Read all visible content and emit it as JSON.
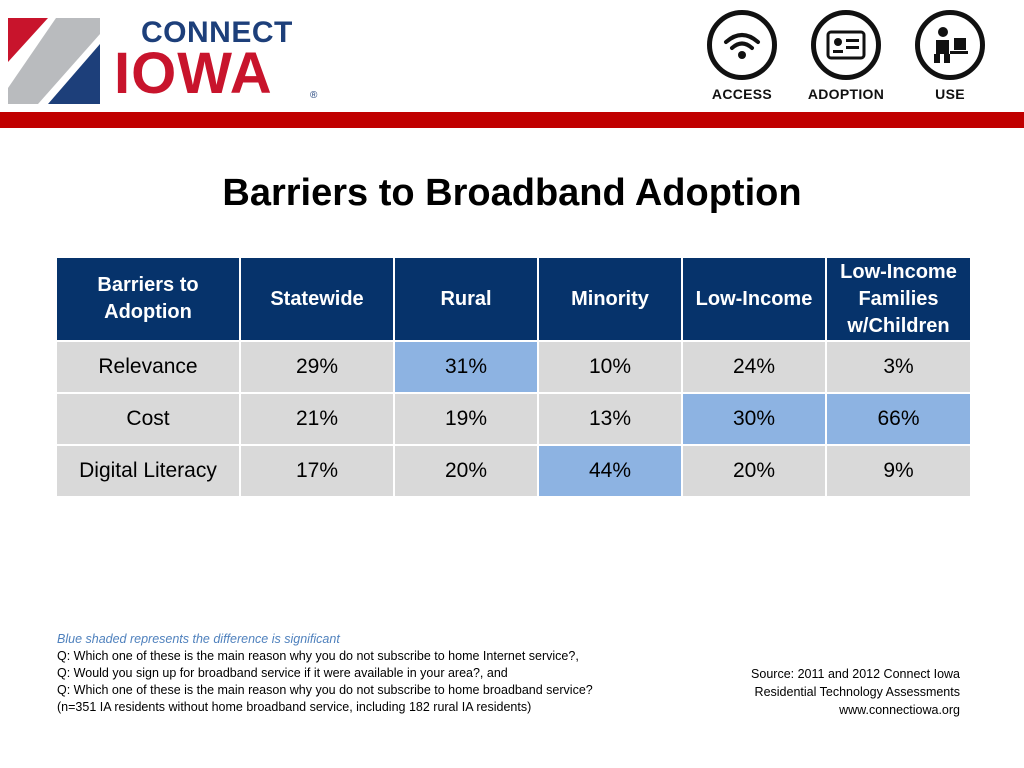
{
  "logo": {
    "line1": "CONNECT",
    "line2": "IOWA",
    "reg": "®"
  },
  "header_icons": [
    {
      "label": "ACCESS",
      "icon": "wifi-icon"
    },
    {
      "label": "ADOPTION",
      "icon": "certificate-icon"
    },
    {
      "label": "USE",
      "icon": "person-at-computer-icon"
    }
  ],
  "colors": {
    "header_red": "#c00000",
    "table_header_blue": "#06336b",
    "cell_gray": "#d9d9d9",
    "significant_blue": "#8db3e2",
    "legend_text_blue": "#4f81bd"
  },
  "title": "Barriers to Broadband Adoption",
  "table": {
    "headers": [
      "Barriers to Adoption",
      "Statewide",
      "Rural",
      "Minority",
      "Low-Income",
      "Low-Income Families w/Children"
    ],
    "rows": [
      {
        "label": "Relevance",
        "values": [
          "29%",
          "31%",
          "10%",
          "24%",
          "3%"
        ],
        "significant": [
          false,
          true,
          false,
          false,
          false
        ]
      },
      {
        "label": "Cost",
        "values": [
          "21%",
          "19%",
          "13%",
          "30%",
          "66%"
        ],
        "significant": [
          false,
          false,
          false,
          true,
          true
        ]
      },
      {
        "label": "Digital Literacy",
        "values": [
          "17%",
          "20%",
          "44%",
          "20%",
          "9%"
        ],
        "significant": [
          false,
          false,
          true,
          false,
          false
        ]
      }
    ]
  },
  "notes": {
    "legend": "Blue shaded represents the difference is significant",
    "lines": [
      "Q: Which one of these is the main reason why you do not subscribe to home Internet service?,",
      "Q: Would you sign up for broadband service if it were available in your area?, and",
      "Q: Which one of these is the main reason why you do not subscribe to home broadband service?",
      "(n=351 IA residents without home broadband service, including 182 rural IA residents)"
    ]
  },
  "source": {
    "lines": [
      "Source: 2011 and 2012 Connect Iowa",
      "Residential Technology Assessments",
      "www.connectiowa.org"
    ]
  }
}
